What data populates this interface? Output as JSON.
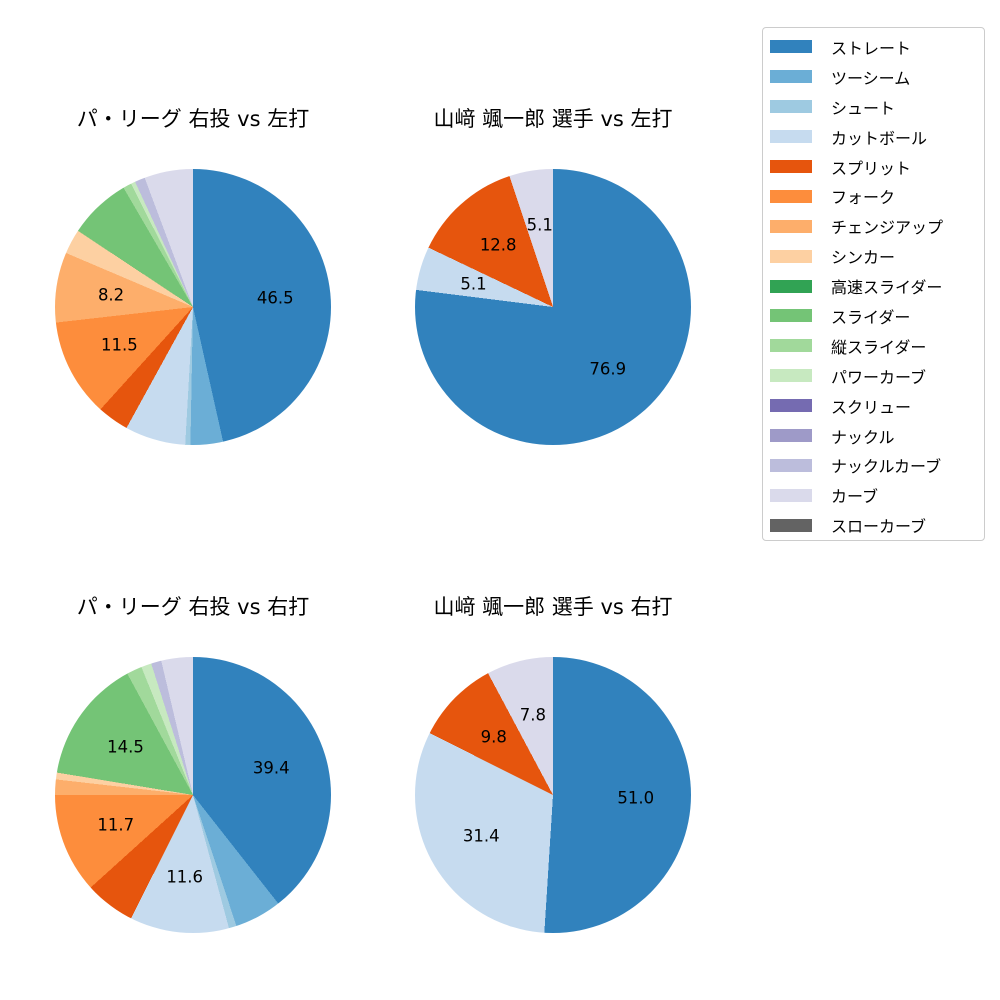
{
  "figure": {
    "background_color": "#ffffff",
    "legend_border_color": "#cccccc",
    "text_color": "#000000"
  },
  "legend": {
    "position": "top-right",
    "items": [
      {
        "name": "ストレート",
        "color": "#3182bd"
      },
      {
        "name": "ツーシーム",
        "color": "#6baed6"
      },
      {
        "name": "シュート",
        "color": "#9ecae1"
      },
      {
        "name": "カットボール",
        "color": "#c6dbef"
      },
      {
        "name": "スプリット",
        "color": "#e6550d"
      },
      {
        "name": "フォーク",
        "color": "#fd8d3c"
      },
      {
        "name": "チェンジアップ",
        "color": "#fdae6b"
      },
      {
        "name": "シンカー",
        "color": "#fdd0a2"
      },
      {
        "name": "高速スライダー",
        "color": "#31a354"
      },
      {
        "name": "スライダー",
        "color": "#74c476"
      },
      {
        "name": "縦スライダー",
        "color": "#a1d99b"
      },
      {
        "name": "パワーカーブ",
        "color": "#c7e9c0"
      },
      {
        "name": "スクリュー",
        "color": "#756bb1"
      },
      {
        "name": "ナックル",
        "color": "#9e9ac8"
      },
      {
        "name": "ナックルカーブ",
        "color": "#bcbddc"
      },
      {
        "name": "カーブ",
        "color": "#dadaeb"
      },
      {
        "name": "スローカーブ",
        "color": "#636363"
      }
    ]
  },
  "chart_data": [
    {
      "type": "pie",
      "title": "パ・リーグ 右投 vs 左打",
      "start_angle": "12-o-clock",
      "direction": "clockwise",
      "label_distance_ratio": 0.6,
      "slices": [
        {
          "name": "ストレート",
          "value": 46.5,
          "label": "46.5"
        },
        {
          "name": "ツーシーム",
          "value": 3.8,
          "label": null
        },
        {
          "name": "シュート",
          "value": 0.6,
          "label": null
        },
        {
          "name": "カットボール",
          "value": 7.1,
          "label": null
        },
        {
          "name": "スプリット",
          "value": 3.7,
          "label": null
        },
        {
          "name": "フォーク",
          "value": 11.5,
          "label": "11.5"
        },
        {
          "name": "チェンジアップ",
          "value": 8.2,
          "label": "8.2"
        },
        {
          "name": "シンカー",
          "value": 2.9,
          "label": null
        },
        {
          "name": "スライダー",
          "value": 7.3,
          "label": null
        },
        {
          "name": "縦スライダー",
          "value": 1.0,
          "label": null
        },
        {
          "name": "パワーカーブ",
          "value": 0.5,
          "label": null
        },
        {
          "name": "ナックルカーブ",
          "value": 1.2,
          "label": null
        },
        {
          "name": "カーブ",
          "value": 5.7,
          "label": null
        }
      ]
    },
    {
      "type": "pie",
      "title": "山﨑 颯一郎 選手 vs 左打",
      "start_angle": "12-o-clock",
      "direction": "clockwise",
      "label_distance_ratio": 0.6,
      "slices": [
        {
          "name": "ストレート",
          "value": 76.9,
          "label": "76.9"
        },
        {
          "name": "カットボール",
          "value": 5.1,
          "label": "5.1"
        },
        {
          "name": "スプリット",
          "value": 12.8,
          "label": "12.8"
        },
        {
          "name": "カーブ",
          "value": 5.1,
          "label": "5.1"
        }
      ]
    },
    {
      "type": "pie",
      "title": "パ・リーグ 右投 vs 右打",
      "start_angle": "12-o-clock",
      "direction": "clockwise",
      "label_distance_ratio": 0.6,
      "slices": [
        {
          "name": "ストレート",
          "value": 39.4,
          "label": "39.4"
        },
        {
          "name": "ツーシーム",
          "value": 5.5,
          "label": null
        },
        {
          "name": "シュート",
          "value": 0.9,
          "label": null
        },
        {
          "name": "カットボール",
          "value": 11.6,
          "label": "11.6"
        },
        {
          "name": "スプリット",
          "value": 5.9,
          "label": null
        },
        {
          "name": "フォーク",
          "value": 11.7,
          "label": "11.7"
        },
        {
          "name": "チェンジアップ",
          "value": 1.8,
          "label": null
        },
        {
          "name": "シンカー",
          "value": 0.8,
          "label": null
        },
        {
          "name": "スライダー",
          "value": 14.5,
          "label": "14.5"
        },
        {
          "name": "縦スライダー",
          "value": 1.8,
          "label": null
        },
        {
          "name": "パワーカーブ",
          "value": 1.2,
          "label": null
        },
        {
          "name": "ナックルカーブ",
          "value": 1.2,
          "label": null
        },
        {
          "name": "カーブ",
          "value": 3.7,
          "label": null
        }
      ]
    },
    {
      "type": "pie",
      "title": "山﨑 颯一郎 選手 vs 右打",
      "start_angle": "12-o-clock",
      "direction": "clockwise",
      "label_distance_ratio": 0.6,
      "slices": [
        {
          "name": "ストレート",
          "value": 51.0,
          "label": "51.0"
        },
        {
          "name": "カットボール",
          "value": 31.4,
          "label": "31.4"
        },
        {
          "name": "スプリット",
          "value": 9.8,
          "label": "9.8"
        },
        {
          "name": "カーブ",
          "value": 7.8,
          "label": "7.8"
        }
      ]
    }
  ]
}
